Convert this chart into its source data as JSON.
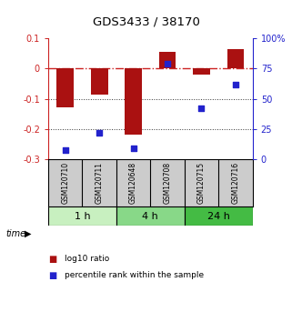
{
  "title": "GDS3433 / 38170",
  "samples": [
    "GSM120710",
    "GSM120711",
    "GSM120648",
    "GSM120708",
    "GSM120715",
    "GSM120716"
  ],
  "log10_ratio": [
    -0.13,
    -0.085,
    -0.22,
    0.055,
    -0.02,
    0.065
  ],
  "percentile_rank": [
    7,
    22,
    9,
    79,
    42,
    62
  ],
  "time_groups": [
    {
      "label": "1 h",
      "start": 0,
      "end": 2,
      "color": "#c8f0c0"
    },
    {
      "label": "4 h",
      "start": 2,
      "end": 4,
      "color": "#88d888"
    },
    {
      "label": "24 h",
      "start": 4,
      "end": 6,
      "color": "#44bb44"
    }
  ],
  "bar_color": "#aa1111",
  "dot_color": "#2222cc",
  "left_ylim": [
    -0.3,
    0.1
  ],
  "left_yticks": [
    -0.3,
    -0.2,
    -0.1,
    0.0,
    0.1
  ],
  "left_yticklabels": [
    "-0.3",
    "-0.2",
    "-0.1",
    "0",
    "0.1"
  ],
  "right_ylim": [
    0,
    100
  ],
  "right_yticks": [
    0,
    25,
    50,
    75,
    100
  ],
  "right_yticklabels": [
    "0",
    "25",
    "50",
    "75",
    "100%"
  ],
  "zero_line_color": "#cc2222",
  "dotted_line_color": "#333333",
  "background_color": "#ffffff",
  "plot_bg": "#ffffff",
  "sample_box_color": "#cccccc",
  "legend_red": "log10 ratio",
  "legend_blue": "percentile rank within the sample",
  "time_label": "time"
}
